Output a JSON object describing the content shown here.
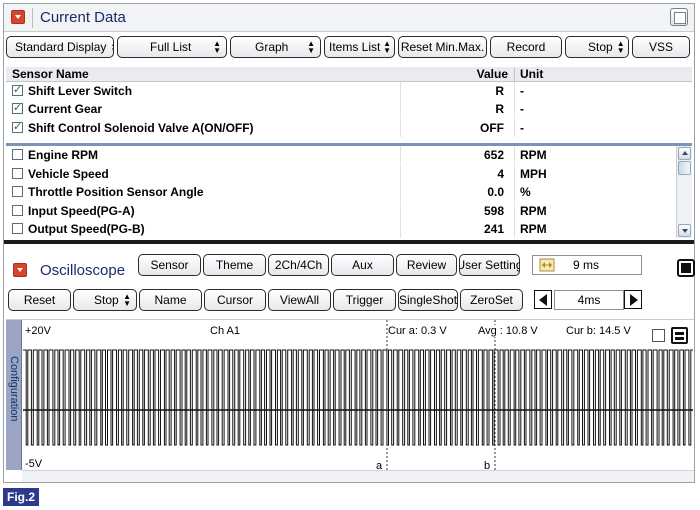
{
  "current_data": {
    "title": "Current Data",
    "toolbar": [
      {
        "id": "standard-display",
        "label": "Standard Display",
        "dropdown": true
      },
      {
        "id": "full-list",
        "label": "Full List",
        "dropdown": true
      },
      {
        "id": "graph",
        "label": "Graph",
        "dropdown": true
      },
      {
        "id": "items-list",
        "label": "Items List",
        "dropdown": true
      },
      {
        "id": "reset-min-max",
        "label": "Reset Min.Max.",
        "dropdown": false
      },
      {
        "id": "record",
        "label": "Record",
        "dropdown": false
      },
      {
        "id": "stop",
        "label": "Stop",
        "dropdown": true
      },
      {
        "id": "vss",
        "label": "VSS",
        "dropdown": false
      }
    ],
    "table": {
      "headers": {
        "name": "Sensor Name",
        "value": "Value",
        "unit": "Unit"
      },
      "rows": [
        {
          "name": "Shift Lever Switch",
          "value": "R",
          "unit": "-",
          "checked": true
        },
        {
          "name": "Current Gear",
          "value": "R",
          "unit": "-",
          "checked": true
        },
        {
          "name": "Shift Control Solenoid Valve A(ON/OFF)",
          "value": "OFF",
          "unit": "-",
          "checked": true
        },
        {
          "name": "Engine RPM",
          "value": "652",
          "unit": "RPM",
          "checked": false
        },
        {
          "name": "Vehicle Speed",
          "value": "4",
          "unit": "MPH",
          "checked": false
        },
        {
          "name": "Throttle Position Sensor Angle",
          "value": "0.0",
          "unit": "%",
          "checked": false
        },
        {
          "name": "Input Speed(PG-A)",
          "value": "598",
          "unit": "RPM",
          "checked": false
        },
        {
          "name": "Output Speed(PG-B)",
          "value": "241",
          "unit": "RPM",
          "checked": false
        }
      ]
    }
  },
  "oscilloscope": {
    "title": "Oscilloscope",
    "toolbar_top": [
      {
        "id": "sensor",
        "label": "Sensor"
      },
      {
        "id": "theme",
        "label": "Theme"
      },
      {
        "id": "2ch-4ch",
        "label": "2Ch/4Ch"
      },
      {
        "id": "aux",
        "label": "Aux"
      },
      {
        "id": "review",
        "label": "Review"
      },
      {
        "id": "user-setting",
        "label": "User Setting"
      }
    ],
    "time_readout": "9 ms",
    "toolbar_bottom": [
      {
        "id": "reset",
        "label": "Reset",
        "dropdown": false
      },
      {
        "id": "stop",
        "label": "Stop",
        "dropdown": true
      },
      {
        "id": "name",
        "label": "Name",
        "dropdown": false
      },
      {
        "id": "cursor",
        "label": "Cursor",
        "dropdown": false
      },
      {
        "id": "viewall",
        "label": "ViewAll",
        "dropdown": false
      },
      {
        "id": "trigger",
        "label": "Trigger",
        "dropdown": false
      },
      {
        "id": "singleshot",
        "label": "SingleShot",
        "dropdown": false
      },
      {
        "id": "zeroset",
        "label": "ZeroSet",
        "dropdown": false
      }
    ],
    "timebase": "4ms",
    "display": {
      "config_tab": "Configuration",
      "y_top": "+20V",
      "y_bottom": "-5V",
      "channel": "Ch A1",
      "cursor_a": "Cur a: 0.3 V",
      "avg": "Avg : 10.8 V",
      "cursor_b": "Cur b: 14.5 V",
      "marker_a": "a",
      "marker_b": "b"
    }
  },
  "figure_label": "Fig.2"
}
